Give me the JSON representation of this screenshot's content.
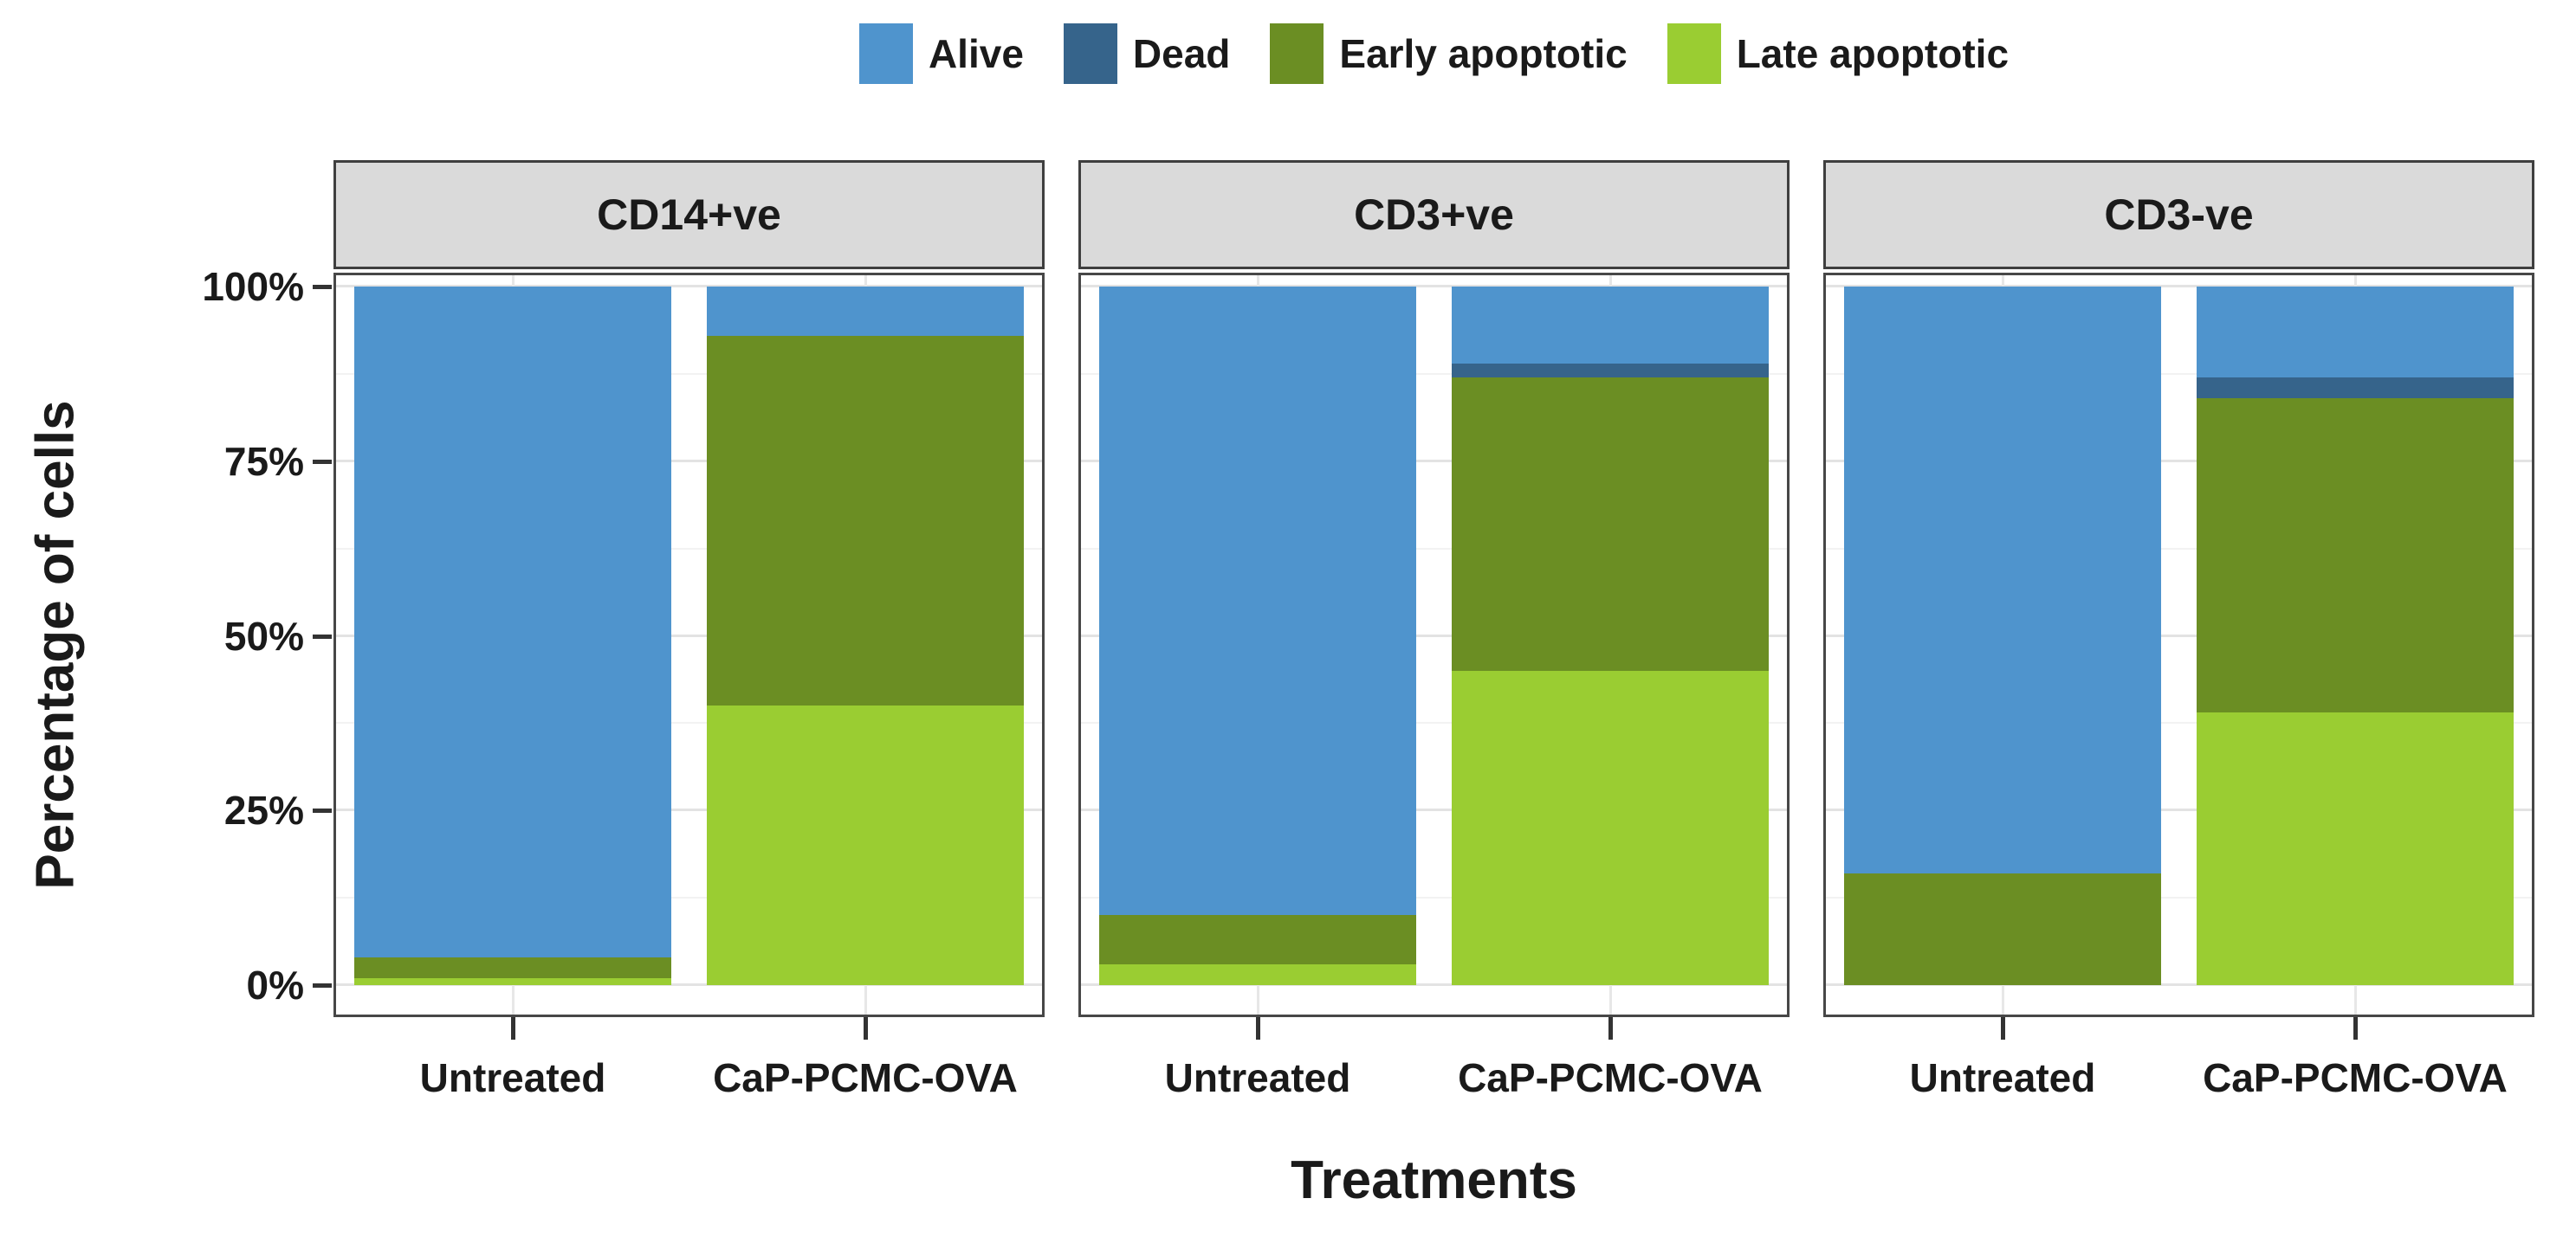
{
  "chart_data": {
    "type": "bar",
    "stacked": true,
    "orientation": "vertical",
    "title": "",
    "xlabel": "Treatments",
    "ylabel": "Percentage of cells",
    "ylim": [
      0,
      100
    ],
    "y_tick_values": [
      0,
      25,
      50,
      75,
      100
    ],
    "y_tick_labels": [
      "0%",
      "25%",
      "50%",
      "75%",
      "100%"
    ],
    "minor_grid_values": [
      12.5,
      37.5,
      62.5,
      87.5
    ],
    "grid": "major and minor horizontal gridlines, vertical gridlines at category centers",
    "legend_position": "top",
    "series": [
      {
        "name": "Alive",
        "color": "#4F94CD"
      },
      {
        "name": "Dead",
        "color": "#36648B"
      },
      {
        "name": "Early apoptotic",
        "color": "#6B8E23"
      },
      {
        "name": "Late apoptotic",
        "color": "#9ACD32"
      }
    ],
    "categories": [
      "Untreated",
      "CaP-PCMC-OVA"
    ],
    "facets": [
      {
        "title": "CD14+ve",
        "series_values": {
          "Alive": [
            96,
            7
          ],
          "Dead": [
            0,
            0
          ],
          "Early apoptotic": [
            3,
            53
          ],
          "Late apoptotic": [
            1,
            40
          ]
        }
      },
      {
        "title": "CD3+ve",
        "series_values": {
          "Alive": [
            90,
            11
          ],
          "Dead": [
            0,
            2
          ],
          "Early apoptotic": [
            7,
            42
          ],
          "Late apoptotic": [
            3,
            45
          ]
        }
      },
      {
        "title": "CD3-ve",
        "series_values": {
          "Alive": [
            84,
            13
          ],
          "Dead": [
            0,
            3
          ],
          "Early apoptotic": [
            16,
            45
          ],
          "Late apoptotic": [
            0,
            39
          ]
        }
      }
    ],
    "style": {
      "strip_background": "#dadada",
      "panel_border": "#474747",
      "major_grid_color": "#e3e3e3",
      "minor_grid_color": "#f2f2f2",
      "text_color": "#1a1a1a"
    }
  }
}
